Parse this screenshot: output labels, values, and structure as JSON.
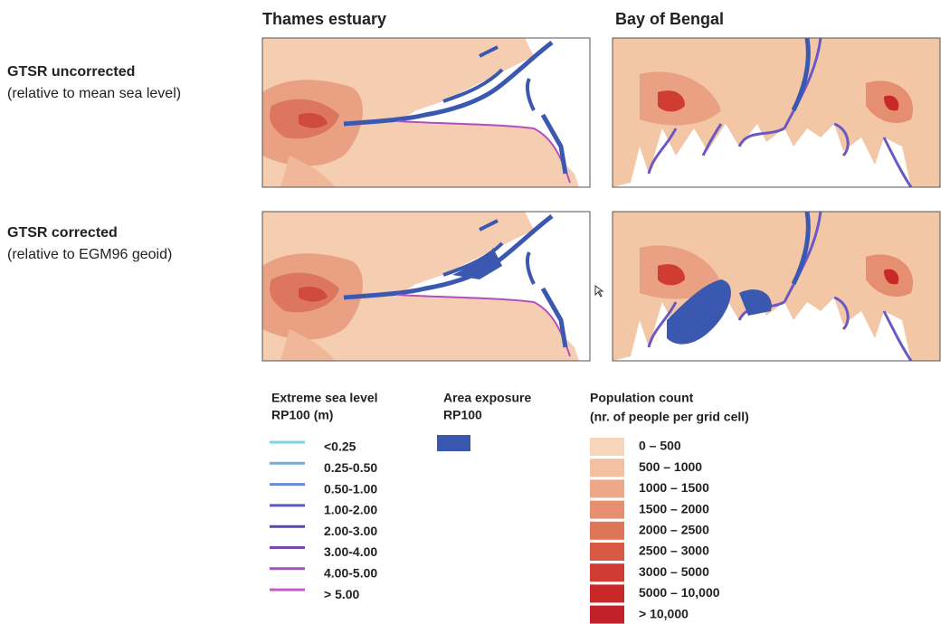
{
  "columns": [
    "Thames estuary",
    "Bay of Bengal"
  ],
  "rows": [
    {
      "title": "GTSR uncorrected",
      "subtitle": "(relative to mean sea level)"
    },
    {
      "title": "GTSR corrected",
      "subtitle": "(relative to EGM96 geoid)"
    }
  ],
  "legends": {
    "sea_level": {
      "title": [
        "Extreme sea level",
        "RP100 (m)"
      ],
      "items": [
        {
          "label": "<0.25",
          "color": "#7fd3e0"
        },
        {
          "label": "0.25-0.50",
          "color": "#6aaee0"
        },
        {
          "label": "0.50-1.00",
          "color": "#6a86d6"
        },
        {
          "label": "1.00-2.00",
          "color": "#5a5cc4"
        },
        {
          "label": "2.00-3.00",
          "color": "#5c47b0"
        },
        {
          "label": "3.00-4.00",
          "color": "#7a48b4"
        },
        {
          "label": "4.00-5.00",
          "color": "#a650c0"
        },
        {
          "label": "> 5.00",
          "color": "#c65ac8"
        }
      ]
    },
    "exposure": {
      "title": [
        "Area exposure",
        "RP100"
      ],
      "color": "#3a58b0"
    },
    "population": {
      "title": [
        "Population count",
        "(nr. of people per grid cell)"
      ],
      "items": [
        {
          "label": "0 –  500",
          "color": "#f7d6bc"
        },
        {
          "label": "500 – 1000",
          "color": "#f2c1a1"
        },
        {
          "label": "1000 – 1500",
          "color": "#eda88a"
        },
        {
          "label": "1500 – 2000",
          "color": "#e58e70"
        },
        {
          "label": "2000 – 2500",
          "color": "#de7458"
        },
        {
          "label": "2500 – 3000",
          "color": "#d85a45"
        },
        {
          "label": "3000 –  5000",
          "color": "#d03c32"
        },
        {
          "label": "5000 – 10,000",
          "color": "#c82828"
        },
        {
          "label": "> 10,000",
          "color": "#c0202a"
        }
      ]
    }
  }
}
